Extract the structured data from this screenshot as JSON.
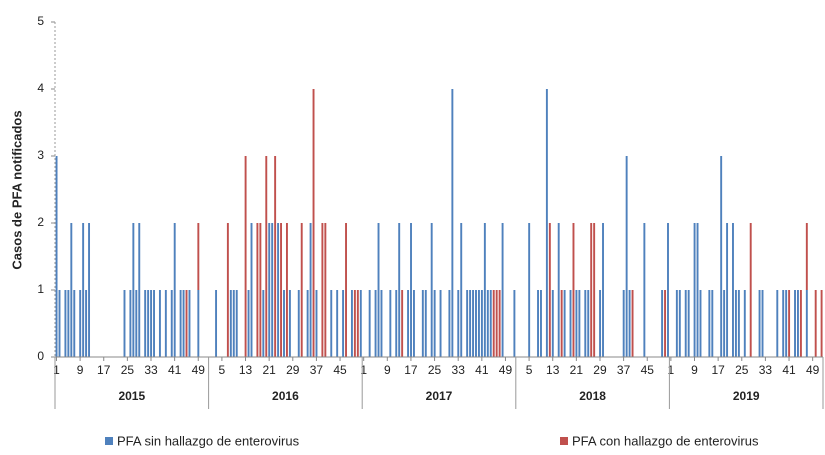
{
  "chart_data": {
    "type": "bar",
    "stacked": true,
    "y_label": "Casos de PFA notificados",
    "groups": [
      "2015",
      "2016",
      "2017",
      "2018",
      "2019"
    ],
    "categories": [
      "1",
      null,
      null,
      null,
      null,
      null,
      null,
      null,
      "9",
      null,
      null,
      null,
      null,
      null,
      null,
      null,
      "17",
      null,
      null,
      null,
      null,
      null,
      null,
      null,
      "25",
      null,
      null,
      null,
      null,
      null,
      null,
      null,
      "33",
      null,
      null,
      null,
      null,
      null,
      null,
      null,
      "41",
      null,
      null,
      null,
      null,
      null,
      null,
      null,
      "49",
      null,
      null,
      null,
      null,
      null,
      null,
      null,
      "5",
      null,
      null,
      null,
      null,
      null,
      null,
      null,
      "13",
      null,
      null,
      null,
      null,
      null,
      null,
      null,
      "21",
      null,
      null,
      null,
      null,
      null,
      null,
      null,
      "29",
      null,
      null,
      null,
      null,
      null,
      null,
      null,
      "37",
      null,
      null,
      null,
      null,
      null,
      null,
      null,
      "45",
      null,
      null,
      null,
      null,
      null,
      null,
      null,
      "1",
      null,
      null,
      null,
      null,
      null,
      null,
      null,
      "9",
      null,
      null,
      null,
      null,
      null,
      null,
      null,
      "17",
      null,
      null,
      null,
      null,
      null,
      null,
      null,
      "25",
      null,
      null,
      null,
      null,
      null,
      null,
      null,
      "33",
      null,
      null,
      null,
      null,
      null,
      null,
      null,
      "41",
      null,
      null,
      null,
      null,
      null,
      null,
      null,
      "49",
      null,
      null,
      null,
      null,
      null,
      null,
      null,
      "5",
      null,
      null,
      null,
      null,
      null,
      null,
      null,
      "13",
      null,
      null,
      null,
      null,
      null,
      null,
      null,
      "21",
      null,
      null,
      null,
      null,
      null,
      null,
      null,
      "29",
      null,
      null,
      null,
      null,
      null,
      null,
      null,
      "37",
      null,
      null,
      null,
      null,
      null,
      null,
      null,
      "45",
      null,
      null,
      null,
      null,
      null,
      null,
      null,
      "1",
      null,
      null,
      null,
      null,
      null,
      null,
      null,
      "9",
      null,
      null,
      null,
      null,
      null,
      null,
      null,
      "17",
      null,
      null,
      null,
      null,
      null,
      null,
      null,
      "25",
      null,
      null,
      null,
      null,
      null,
      null,
      null,
      "33",
      null,
      null,
      null,
      null,
      null,
      null,
      null,
      "41",
      null,
      null,
      null,
      null,
      null,
      null,
      null,
      "49",
      null,
      null,
      null
    ],
    "series": [
      {
        "name": "PFA sin hallazgo de enterovirus",
        "color": "#4f81bd",
        "values": [
          3,
          1,
          0,
          1,
          1,
          2,
          1,
          0,
          1,
          2,
          1,
          2,
          0,
          0,
          0,
          0,
          0,
          0,
          0,
          0,
          0,
          0,
          0,
          1,
          0,
          1,
          2,
          1,
          2,
          0,
          1,
          1,
          1,
          1,
          0,
          1,
          0,
          1,
          0,
          1,
          2,
          0,
          1,
          1,
          0,
          1,
          0,
          0,
          1,
          0,
          0,
          0,
          0,
          0,
          1,
          0,
          0,
          0,
          0,
          1,
          1,
          1,
          0,
          0,
          0,
          1,
          2,
          0,
          0,
          0,
          1,
          0,
          2,
          2,
          0,
          2,
          0,
          1,
          0,
          1,
          0,
          0,
          1,
          0,
          0,
          1,
          2,
          0,
          1,
          0,
          0,
          0,
          0,
          1,
          0,
          1,
          0,
          1,
          0,
          0,
          1,
          0,
          0,
          1,
          0,
          0,
          1,
          0,
          1,
          2,
          1,
          0,
          0,
          1,
          0,
          1,
          2,
          0,
          0,
          1,
          2,
          1,
          0,
          0,
          1,
          1,
          0,
          2,
          1,
          0,
          1,
          0,
          0,
          1,
          4,
          0,
          1,
          2,
          0,
          1,
          1,
          1,
          1,
          1,
          1,
          2,
          1,
          1,
          0,
          0,
          0,
          2,
          0,
          0,
          0,
          1,
          0,
          0,
          0,
          0,
          2,
          0,
          0,
          1,
          1,
          0,
          4,
          0,
          1,
          0,
          2,
          0,
          1,
          0,
          1,
          0,
          1,
          1,
          0,
          1,
          1,
          0,
          0,
          0,
          1,
          2,
          0,
          0,
          0,
          0,
          0,
          0,
          1,
          3,
          1,
          0,
          0,
          0,
          0,
          2,
          0,
          0,
          0,
          0,
          0,
          1,
          0,
          2,
          0,
          0,
          1,
          1,
          0,
          1,
          1,
          0,
          2,
          2,
          1,
          0,
          0,
          1,
          1,
          0,
          0,
          3,
          1,
          2,
          0,
          2,
          1,
          1,
          0,
          1,
          0,
          0,
          0,
          0,
          1,
          1,
          0,
          0,
          0,
          0,
          1,
          0,
          1,
          1,
          0,
          0,
          1,
          1,
          0,
          0,
          1,
          0,
          0,
          0,
          0,
          0
        ]
      },
      {
        "name": "PFA con hallazgo de enterovirus",
        "color": "#c0504d",
        "values": [
          0,
          0,
          0,
          0,
          0,
          0,
          0,
          0,
          0,
          0,
          0,
          0,
          0,
          0,
          0,
          0,
          0,
          0,
          0,
          0,
          0,
          0,
          0,
          0,
          0,
          0,
          0,
          0,
          0,
          0,
          0,
          0,
          0,
          0,
          0,
          0,
          0,
          0,
          0,
          0,
          0,
          0,
          0,
          0,
          1,
          0,
          0,
          0,
          1,
          0,
          0,
          0,
          0,
          0,
          0,
          0,
          0,
          0,
          2,
          0,
          0,
          0,
          0,
          0,
          3,
          0,
          0,
          0,
          2,
          2,
          0,
          3,
          0,
          0,
          3,
          0,
          2,
          0,
          2,
          0,
          0,
          0,
          0,
          2,
          0,
          0,
          0,
          4,
          0,
          0,
          2,
          2,
          0,
          0,
          0,
          0,
          0,
          0,
          2,
          0,
          0,
          1,
          1,
          0,
          0,
          0,
          0,
          0,
          0,
          0,
          0,
          0,
          0,
          0,
          0,
          0,
          0,
          1,
          0,
          0,
          0,
          0,
          0,
          0,
          0,
          0,
          0,
          0,
          0,
          0,
          0,
          0,
          0,
          0,
          0,
          0,
          0,
          0,
          0,
          0,
          0,
          0,
          0,
          0,
          0,
          0,
          0,
          0,
          1,
          1,
          1,
          0,
          0,
          0,
          0,
          0,
          0,
          0,
          0,
          0,
          0,
          0,
          0,
          0,
          0,
          0,
          0,
          2,
          0,
          0,
          0,
          1,
          0,
          0,
          0,
          2,
          0,
          0,
          0,
          0,
          0,
          2,
          2,
          0,
          0,
          0,
          0,
          0,
          0,
          0,
          0,
          0,
          0,
          0,
          0,
          1,
          0,
          0,
          0,
          0,
          0,
          0,
          0,
          0,
          0,
          0,
          1,
          0,
          0,
          0,
          0,
          0,
          0,
          0,
          0,
          0,
          0,
          0,
          0,
          0,
          0,
          0,
          0,
          0,
          0,
          0,
          0,
          0,
          0,
          0,
          0,
          0,
          0,
          0,
          0,
          2,
          0,
          0,
          0,
          0,
          0,
          0,
          0,
          0,
          0,
          0,
          0,
          0,
          1,
          0,
          0,
          0,
          1,
          0,
          1,
          0,
          0,
          1,
          0,
          1
        ]
      }
    ],
    "ylim": [
      0,
      5
    ],
    "yticks": [
      0,
      1,
      2,
      3,
      4,
      5
    ]
  }
}
